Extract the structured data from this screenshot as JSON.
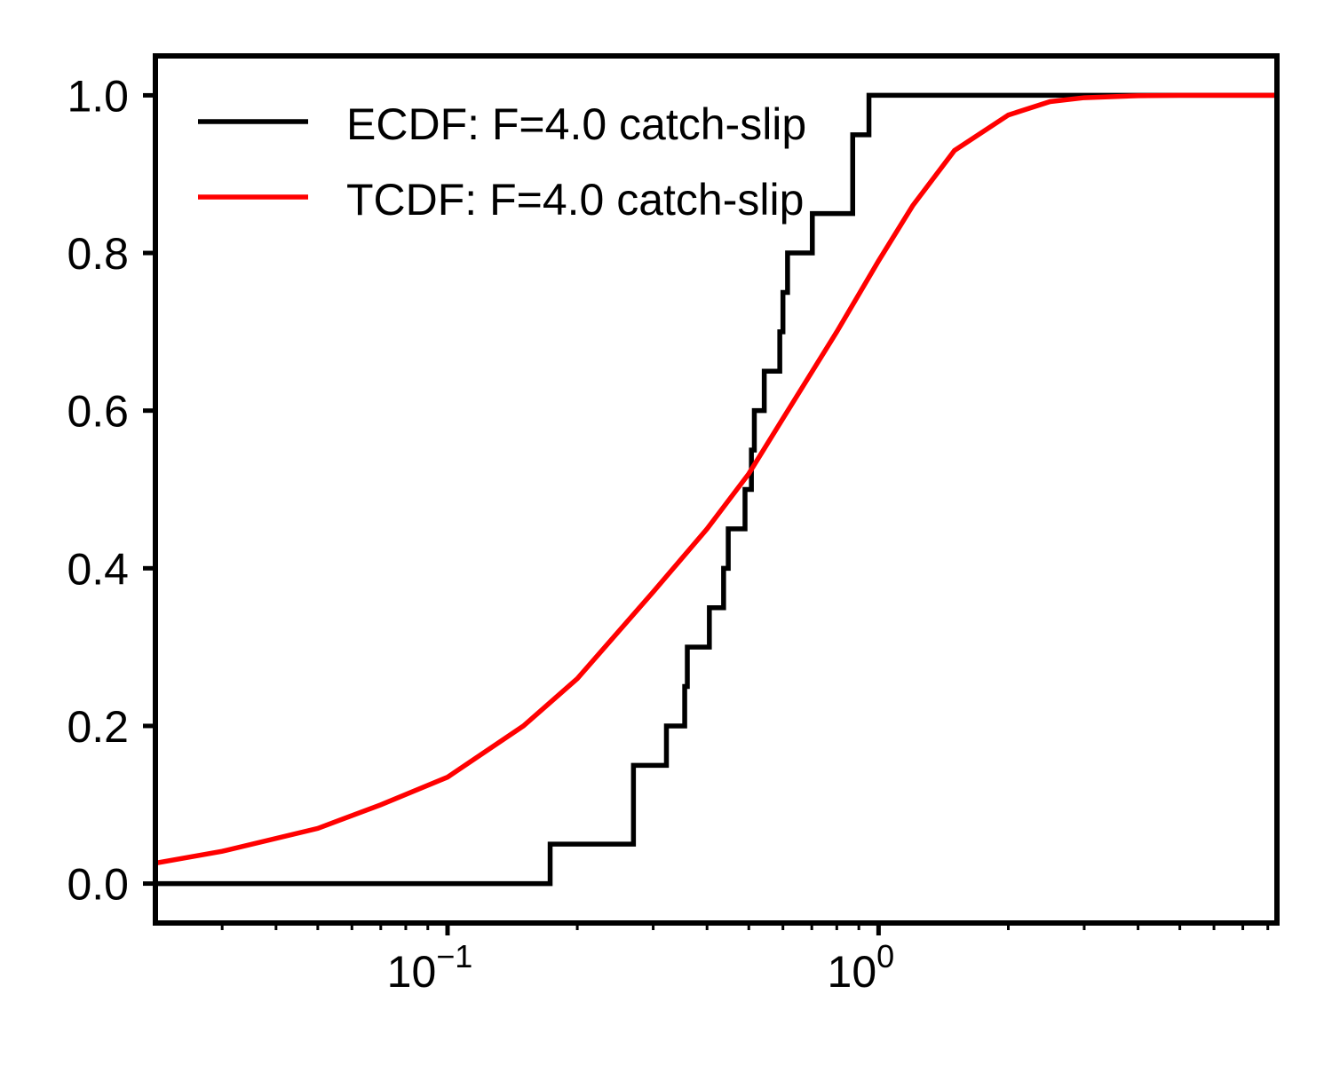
{
  "chart_data": {
    "type": "line",
    "title": "",
    "xlabel": "",
    "ylabel": "",
    "x_scale": "log",
    "xlim": [
      0.021,
      8.4
    ],
    "ylim": [
      -0.05,
      1.05
    ],
    "grid": false,
    "legend_position": "top-left",
    "x_ticks": [
      {
        "value": 0.1,
        "base": "10",
        "exp": "−1"
      },
      {
        "value": 1,
        "base": "10",
        "exp": "0"
      }
    ],
    "y_ticks": [
      {
        "value": 0.0,
        "label": "0.0"
      },
      {
        "value": 0.2,
        "label": "0.2"
      },
      {
        "value": 0.4,
        "label": "0.4"
      },
      {
        "value": 0.6,
        "label": "0.6"
      },
      {
        "value": 0.8,
        "label": "0.8"
      },
      {
        "value": 1.0,
        "label": "1.0"
      }
    ],
    "series": [
      {
        "name": "ECDF: F=4.0 catch-slip",
        "kind": "step",
        "color": "#000000",
        "x": [
          0.021,
          0.173,
          0.27,
          0.322,
          0.355,
          0.36,
          0.405,
          0.437,
          0.448,
          0.49,
          0.507,
          0.515,
          0.543,
          0.59,
          0.6,
          0.615,
          0.702,
          0.871,
          0.95,
          8.4
        ],
        "y": [
          0.0,
          0.05,
          0.15,
          0.2,
          0.25,
          0.3,
          0.35,
          0.4,
          0.45,
          0.5,
          0.55,
          0.6,
          0.65,
          0.7,
          0.75,
          0.8,
          0.85,
          0.95,
          1.0,
          1.0
        ]
      },
      {
        "name": "TCDF: F=4.0 catch-slip",
        "kind": "line",
        "color": "#ff0000",
        "x": [
          0.021,
          0.03,
          0.05,
          0.07,
          0.1,
          0.15,
          0.2,
          0.3,
          0.4,
          0.5,
          0.6,
          0.8,
          1.0,
          1.2,
          1.5,
          2.0,
          2.5,
          3.0,
          4.0,
          5.0,
          6.0,
          8.4
        ],
        "y": [
          0.026,
          0.041,
          0.07,
          0.1,
          0.135,
          0.2,
          0.26,
          0.37,
          0.45,
          0.52,
          0.59,
          0.7,
          0.79,
          0.86,
          0.93,
          0.975,
          0.992,
          0.997,
          0.9995,
          1.0,
          1.0,
          1.0
        ]
      }
    ]
  }
}
